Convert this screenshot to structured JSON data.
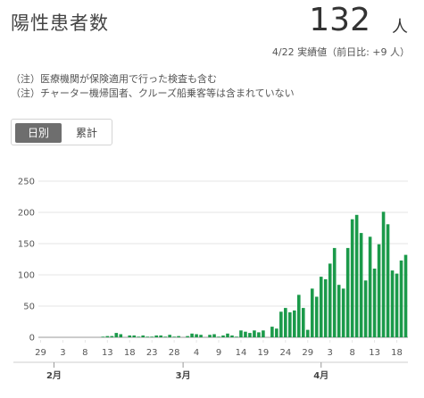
{
  "header": {
    "title": "陽性患者数",
    "value": "132",
    "unit": "人",
    "date_line": "4/22 実績値（前日比: +9 人）"
  },
  "notes": [
    "（注）医療機関が保険適用で行った検査も含む",
    "（注）チャーター機帰国者、クルーズ船乗客等は含まれていない"
  ],
  "toggle": {
    "daily_label": "日別",
    "cumulative_label": "累計",
    "selected": "daily"
  },
  "colors": {
    "bar": "#1b9a4a",
    "grid": "#e6e6e6",
    "axis": "#999999"
  },
  "chart_data": {
    "type": "bar",
    "title": "",
    "xlabel": "",
    "ylabel": "",
    "ylim": [
      0,
      250
    ],
    "yticks": [
      0,
      50,
      100,
      150,
      200,
      250
    ],
    "x_start": "1/29",
    "x_end": "4/22",
    "x_tick_labels": [
      "29",
      "3",
      "8",
      "13",
      "18",
      "23",
      "28",
      "4",
      "9",
      "14",
      "19",
      "24",
      "29",
      "3",
      "8",
      "13",
      "18"
    ],
    "month_labels": [
      "2月",
      "3月",
      "4月"
    ],
    "grid": true,
    "legend": "none",
    "values": [
      0,
      0,
      0,
      0,
      0,
      0,
      0,
      0,
      0,
      0,
      0,
      0,
      0,
      0,
      1,
      2,
      2,
      7,
      5,
      0,
      3,
      3,
      1,
      3,
      1,
      1,
      3,
      3,
      1,
      4,
      1,
      2,
      0,
      2,
      6,
      5,
      4,
      0,
      4,
      5,
      1,
      3,
      6,
      3,
      1,
      11,
      9,
      7,
      11,
      8,
      11,
      0,
      17,
      14,
      41,
      47,
      40,
      43,
      68,
      47,
      12,
      78,
      65,
      97,
      93,
      118,
      143,
      84,
      78,
      143,
      189,
      196,
      167,
      91,
      161,
      110,
      149,
      201,
      181,
      107,
      102,
      123,
      132
    ]
  }
}
